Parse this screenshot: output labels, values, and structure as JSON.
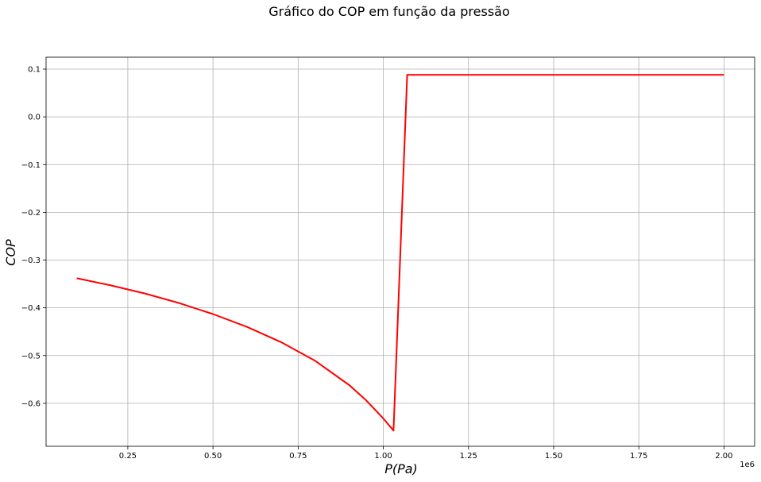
{
  "chart_data": {
    "type": "line",
    "title": "Gráfico do COP em função da pressão",
    "xlabel": "P(Pa)",
    "ylabel": "COP",
    "x_offset_label": "1e6",
    "xlim": [
      10000,
      2090000
    ],
    "ylim": [
      -0.69,
      0.125
    ],
    "grid": true,
    "x_ticks": [
      250000,
      500000,
      750000,
      1000000,
      1250000,
      1500000,
      1750000,
      2000000
    ],
    "x_tick_labels": [
      "0.25",
      "0.50",
      "0.75",
      "1.00",
      "1.25",
      "1.50",
      "1.75",
      "2.00"
    ],
    "y_ticks": [
      0.1,
      0.0,
      -0.1,
      -0.2,
      -0.3,
      -0.4,
      -0.5,
      -0.6
    ],
    "y_tick_labels": [
      "0.1",
      "0.0",
      "−0.1",
      "−0.2",
      "−0.3",
      "−0.4",
      "−0.5",
      "−0.6"
    ],
    "series": [
      {
        "color": "#ff0000",
        "x": [
          100000,
          200000,
          300000,
          400000,
          500000,
          600000,
          700000,
          800000,
          900000,
          950000,
          1000000,
          1030000,
          1070000,
          1100000,
          1200000,
          1400000,
          1600000,
          1800000,
          2000000
        ],
        "y": [
          -0.338,
          -0.353,
          -0.37,
          -0.39,
          -0.413,
          -0.44,
          -0.472,
          -0.511,
          -0.562,
          -0.594,
          -0.632,
          -0.657,
          0.088,
          0.088,
          0.088,
          0.088,
          0.088,
          0.088,
          0.088
        ]
      }
    ]
  }
}
